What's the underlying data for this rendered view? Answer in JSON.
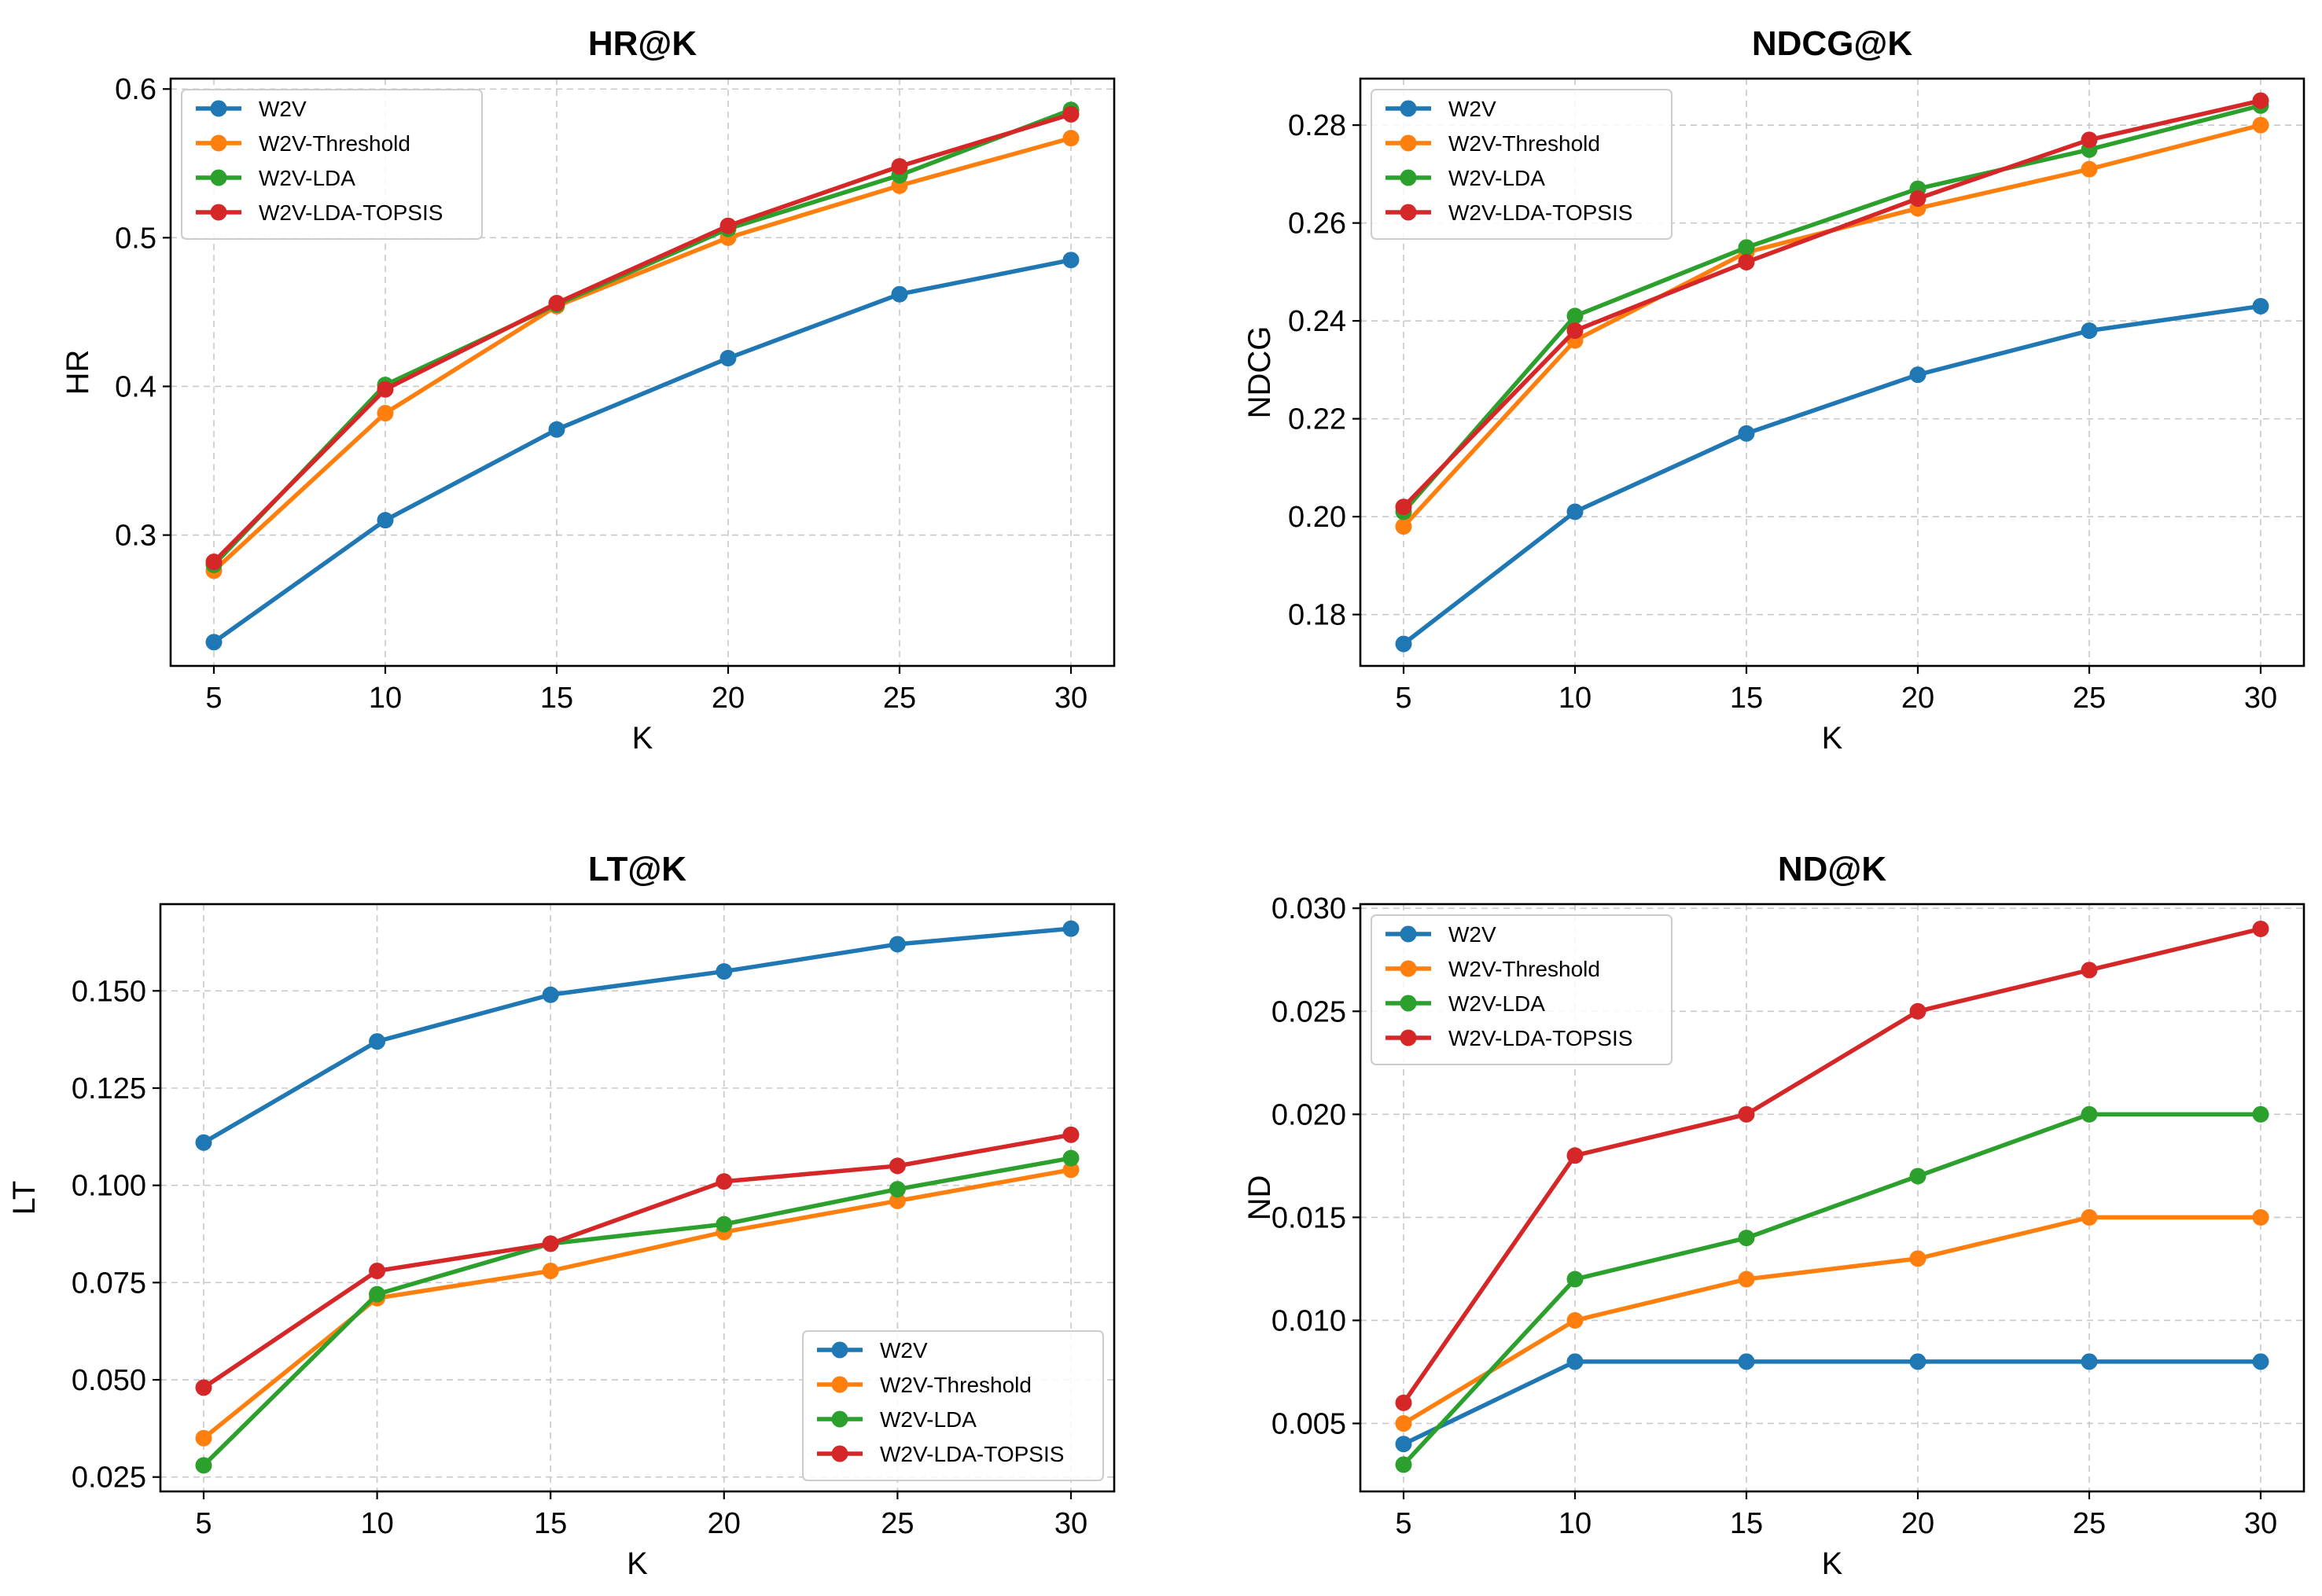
{
  "colors": {
    "W2V": "#1f77b4",
    "W2V-Threshold": "#ff7f0e",
    "W2V-LDA": "#2ca02c",
    "W2V-LDA-TOPSIS": "#d62728"
  },
  "chart_data": [
    {
      "type": "line",
      "title": "HR@K",
      "xlabel": "K",
      "ylabel": "HR",
      "x": [
        5,
        10,
        15,
        20,
        25,
        30
      ],
      "xticks": [
        "5",
        "10",
        "15",
        "20",
        "25",
        "30"
      ],
      "yticks": [
        "0.3",
        "0.4",
        "0.5",
        "0.6"
      ],
      "ytick_values": [
        0.3,
        0.4,
        0.5,
        0.6
      ],
      "ylim": [
        0.212,
        0.607
      ],
      "grid": true,
      "legend_position": "top-left",
      "series": [
        {
          "name": "W2V",
          "color": "#1f77b4",
          "values": [
            0.228,
            0.31,
            0.371,
            0.419,
            0.462,
            0.485
          ]
        },
        {
          "name": "W2V-Threshold",
          "color": "#ff7f0e",
          "values": [
            0.276,
            0.382,
            0.454,
            0.5,
            0.535,
            0.567
          ]
        },
        {
          "name": "W2V-LDA",
          "color": "#2ca02c",
          "values": [
            0.28,
            0.401,
            0.455,
            0.506,
            0.542,
            0.586
          ]
        },
        {
          "name": "W2V-LDA-TOPSIS",
          "color": "#d62728",
          "values": [
            0.282,
            0.398,
            0.456,
            0.508,
            0.548,
            0.583
          ]
        }
      ]
    },
    {
      "type": "line",
      "title": "NDCG@K",
      "xlabel": "K",
      "ylabel": "NDCG",
      "x": [
        5,
        10,
        15,
        20,
        25,
        30
      ],
      "xticks": [
        "5",
        "10",
        "15",
        "20",
        "25",
        "30"
      ],
      "yticks": [
        "0.18",
        "0.20",
        "0.22",
        "0.24",
        "0.26",
        "0.28"
      ],
      "ytick_values": [
        0.18,
        0.2,
        0.22,
        0.24,
        0.26,
        0.28
      ],
      "ylim": [
        0.1695,
        0.2895
      ],
      "grid": true,
      "legend_position": "top-left",
      "series": [
        {
          "name": "W2V",
          "color": "#1f77b4",
          "values": [
            0.174,
            0.201,
            0.217,
            0.229,
            0.238,
            0.243
          ]
        },
        {
          "name": "W2V-Threshold",
          "color": "#ff7f0e",
          "values": [
            0.198,
            0.236,
            0.254,
            0.263,
            0.271,
            0.28
          ]
        },
        {
          "name": "W2V-LDA",
          "color": "#2ca02c",
          "values": [
            0.201,
            0.241,
            0.255,
            0.267,
            0.275,
            0.284
          ]
        },
        {
          "name": "W2V-LDA-TOPSIS",
          "color": "#d62728",
          "values": [
            0.202,
            0.238,
            0.252,
            0.265,
            0.277,
            0.285
          ]
        }
      ]
    },
    {
      "type": "line",
      "title": "LT@K",
      "xlabel": "K",
      "ylabel": "LT",
      "x": [
        5,
        10,
        15,
        20,
        25,
        30
      ],
      "xticks": [
        "5",
        "10",
        "15",
        "20",
        "25",
        "30"
      ],
      "yticks": [
        "0.025",
        "0.050",
        "0.075",
        "0.100",
        "0.125",
        "0.150"
      ],
      "ytick_values": [
        0.025,
        0.05,
        0.075,
        0.1,
        0.125,
        0.15
      ],
      "ylim": [
        0.0213,
        0.1723
      ],
      "grid": true,
      "legend_position": "bottom-right",
      "series": [
        {
          "name": "W2V",
          "color": "#1f77b4",
          "values": [
            0.111,
            0.137,
            0.149,
            0.155,
            0.162,
            0.166
          ]
        },
        {
          "name": "W2V-Threshold",
          "color": "#ff7f0e",
          "values": [
            0.035,
            0.071,
            0.078,
            0.088,
            0.096,
            0.104
          ]
        },
        {
          "name": "W2V-LDA",
          "color": "#2ca02c",
          "values": [
            0.028,
            0.072,
            0.085,
            0.09,
            0.099,
            0.107
          ]
        },
        {
          "name": "W2V-LDA-TOPSIS",
          "color": "#d62728",
          "values": [
            0.048,
            0.078,
            0.085,
            0.101,
            0.105,
            0.113
          ]
        }
      ]
    },
    {
      "type": "line",
      "title": "ND@K",
      "xlabel": "K",
      "ylabel": "ND",
      "x": [
        5,
        10,
        15,
        20,
        25,
        30
      ],
      "xticks": [
        "5",
        "10",
        "15",
        "20",
        "25",
        "30"
      ],
      "yticks": [
        "0.005",
        "0.010",
        "0.015",
        "0.020",
        "0.025",
        "0.030"
      ],
      "ytick_values": [
        0.005,
        0.01,
        0.015,
        0.02,
        0.025,
        0.03
      ],
      "ylim": [
        0.0017,
        0.0302
      ],
      "grid": true,
      "legend_position": "top-left",
      "series": [
        {
          "name": "W2V",
          "color": "#1f77b4",
          "values": [
            0.004,
            0.008,
            0.008,
            0.008,
            0.008,
            0.008
          ]
        },
        {
          "name": "W2V-Threshold",
          "color": "#ff7f0e",
          "values": [
            0.005,
            0.01,
            0.012,
            0.013,
            0.015,
            0.015
          ]
        },
        {
          "name": "W2V-LDA",
          "color": "#2ca02c",
          "values": [
            0.003,
            0.012,
            0.014,
            0.017,
            0.02,
            0.02
          ]
        },
        {
          "name": "W2V-LDA-TOPSIS",
          "color": "#d62728",
          "values": [
            0.006,
            0.018,
            0.02,
            0.025,
            0.027,
            0.029
          ]
        }
      ]
    }
  ]
}
